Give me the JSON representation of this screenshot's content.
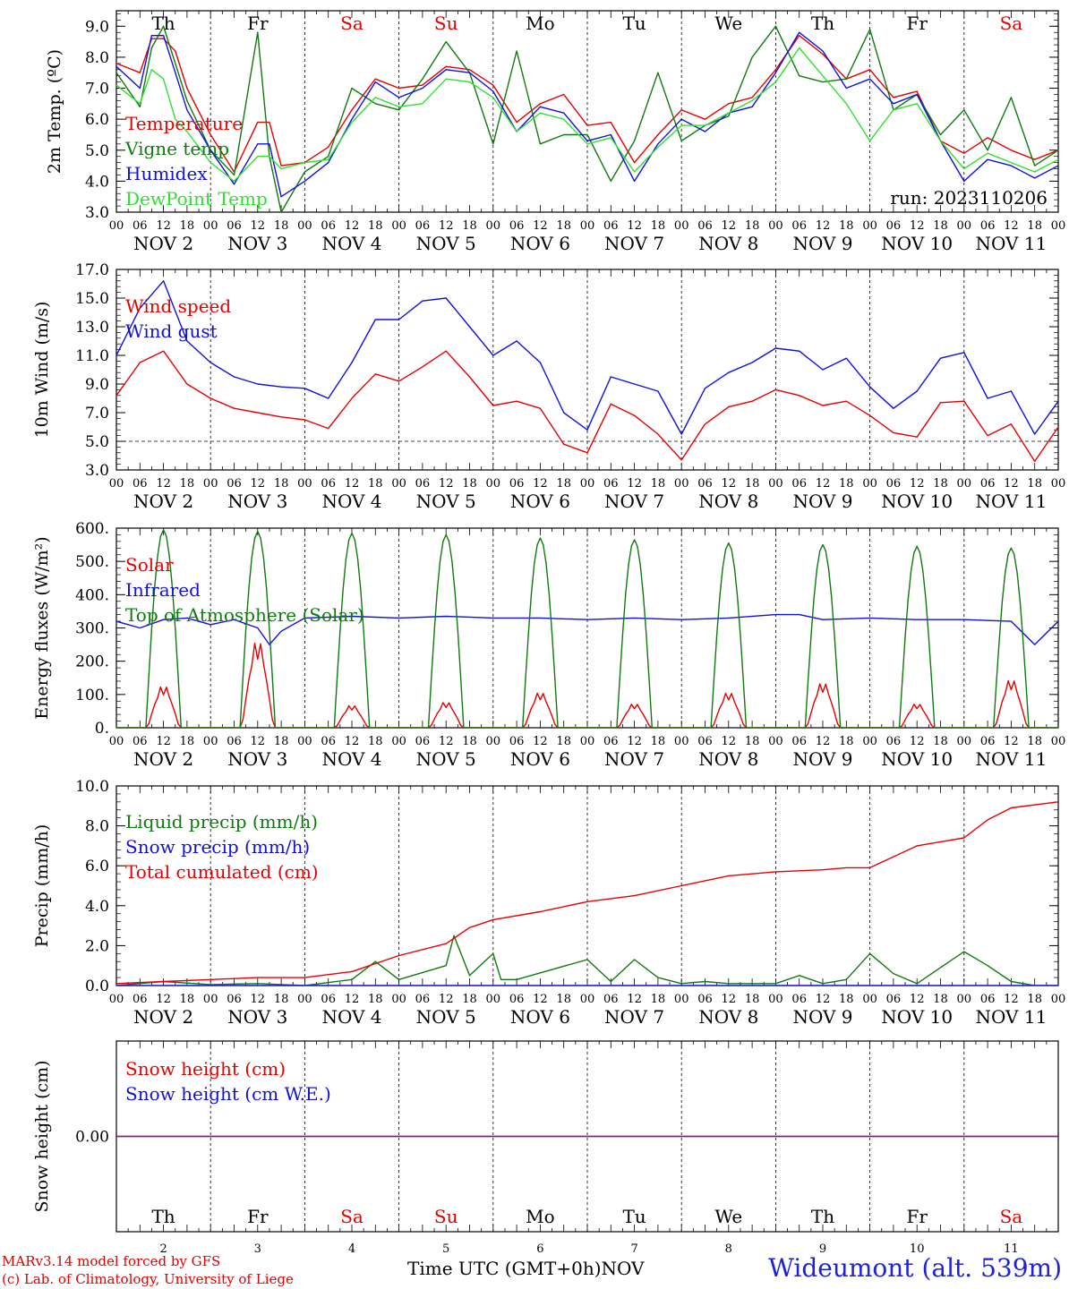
{
  "colors": {
    "red": "#e80000",
    "green": "#107a10",
    "blue": "#1010e0",
    "lightgreen": "#30e030",
    "purple": "#7a2a7a",
    "axis": "#000000",
    "gridline": "#000000"
  },
  "days": {
    "weekdays": [
      "Th",
      "Fr",
      "Sa",
      "Su",
      "Mo",
      "Tu",
      "We",
      "Th",
      "Fr",
      "Sa"
    ],
    "weekday_colors": [
      "#000000",
      "#000000",
      "#e80000",
      "#e80000",
      "#000000",
      "#000000",
      "#000000",
      "#000000",
      "#000000",
      "#e80000"
    ],
    "dates": [
      "NOV 2",
      "NOV 3",
      "NOV 4",
      "NOV 5",
      "NOV 6",
      "NOV 7",
      "NOV 8",
      "NOV 9",
      "NOV 10",
      "NOV 11"
    ],
    "day_numbers": [
      "2",
      "3",
      "4",
      "5",
      "6",
      "7",
      "8",
      "9",
      "10",
      "11"
    ],
    "hour_ticks": [
      "00",
      "06",
      "12",
      "18"
    ],
    "final_hour": "00"
  },
  "chart_data": [
    {
      "type": "line",
      "ylabel": "2m Temp. (ºC)",
      "ylim": [
        3.0,
        9.5
      ],
      "yticks": [
        "3.0",
        "4.0",
        "5.0",
        "6.0",
        "7.0",
        "8.0",
        "9.0"
      ],
      "run_label": "run: 2023110206",
      "x_unit": "hours from NOV 2 00 UTC",
      "series": [
        {
          "name": "Temperature",
          "color": "#e80000",
          "x": [
            0,
            6,
            9,
            12,
            15,
            18,
            24,
            30,
            36,
            39,
            42,
            48,
            54,
            60,
            66,
            72,
            78,
            84,
            90,
            96,
            102,
            108,
            114,
            120,
            126,
            132,
            138,
            144,
            150,
            156,
            162,
            168,
            174,
            180,
            186,
            192,
            198,
            204,
            210,
            216,
            222,
            228,
            234,
            240
          ],
          "values": [
            7.8,
            7.5,
            8.6,
            8.6,
            8.2,
            7.0,
            5.5,
            4.3,
            5.9,
            5.9,
            4.5,
            4.6,
            5.1,
            6.3,
            7.3,
            7.0,
            7.1,
            7.7,
            7.6,
            7.1,
            5.9,
            6.5,
            6.8,
            5.8,
            5.9,
            4.6,
            5.5,
            6.3,
            6.0,
            6.5,
            6.7,
            7.6,
            8.7,
            8.1,
            7.3,
            7.6,
            6.7,
            6.9,
            5.3,
            4.9,
            5.4,
            5.0,
            4.7,
            5.0
          ]
        },
        {
          "name": "Vigne temp",
          "color": "#107a10",
          "x": [
            0,
            6,
            9,
            12,
            15,
            18,
            24,
            30,
            36,
            39,
            42,
            48,
            54,
            60,
            66,
            72,
            78,
            84,
            90,
            96,
            102,
            108,
            114,
            120,
            126,
            132,
            138,
            144,
            150,
            156,
            162,
            168,
            174,
            180,
            186,
            192,
            198,
            204,
            210,
            216,
            222,
            228,
            234,
            240
          ],
          "values": [
            7.5,
            6.4,
            8.3,
            9.0,
            7.8,
            6.6,
            5.0,
            4.2,
            8.8,
            4.8,
            3.0,
            4.3,
            4.8,
            7.0,
            6.5,
            6.3,
            7.3,
            8.5,
            7.5,
            5.2,
            8.2,
            5.2,
            5.5,
            5.5,
            4.0,
            5.3,
            7.5,
            5.3,
            5.8,
            6.1,
            8.0,
            9.0,
            7.4,
            7.2,
            7.3,
            8.9,
            6.3,
            6.8,
            5.5,
            6.3,
            5.0,
            6.7,
            4.5,
            5.0
          ]
        },
        {
          "name": "Humidex",
          "color": "#1010e0",
          "x": [
            0,
            6,
            9,
            12,
            15,
            18,
            24,
            30,
            36,
            39,
            42,
            48,
            54,
            60,
            66,
            72,
            78,
            84,
            90,
            96,
            102,
            108,
            114,
            120,
            126,
            132,
            138,
            144,
            150,
            156,
            162,
            168,
            174,
            180,
            186,
            192,
            198,
            204,
            210,
            216,
            222,
            228,
            234,
            240
          ],
          "values": [
            7.7,
            7.0,
            8.7,
            8.7,
            7.5,
            6.3,
            5.0,
            3.9,
            5.2,
            5.2,
            3.5,
            4.0,
            4.6,
            6.0,
            7.2,
            6.7,
            7.0,
            7.6,
            7.5,
            6.9,
            5.6,
            6.4,
            6.2,
            5.3,
            5.5,
            4.0,
            5.2,
            6.0,
            5.6,
            6.2,
            6.4,
            7.5,
            8.8,
            8.2,
            7.0,
            7.3,
            6.5,
            6.8,
            5.3,
            4.0,
            4.7,
            4.5,
            4.1,
            4.5
          ]
        },
        {
          "name": "DewPoint Temp",
          "color": "#30e030",
          "x": [
            0,
            6,
            9,
            12,
            15,
            18,
            24,
            30,
            36,
            39,
            42,
            48,
            54,
            60,
            66,
            72,
            78,
            84,
            90,
            96,
            102,
            108,
            114,
            120,
            126,
            132,
            138,
            144,
            150,
            156,
            162,
            168,
            174,
            180,
            186,
            192,
            198,
            204,
            210,
            216,
            222,
            228,
            234,
            240
          ],
          "values": [
            7.1,
            6.5,
            7.6,
            7.3,
            6.0,
            5.6,
            4.6,
            4.0,
            4.8,
            4.8,
            4.4,
            4.6,
            4.7,
            5.9,
            6.7,
            6.4,
            6.5,
            7.3,
            7.2,
            6.7,
            5.6,
            6.2,
            6.0,
            5.2,
            5.4,
            4.3,
            5.1,
            5.8,
            5.8,
            6.2,
            6.6,
            7.2,
            8.3,
            7.4,
            6.5,
            5.3,
            6.3,
            6.5,
            5.3,
            4.4,
            4.9,
            4.6,
            4.3,
            4.7
          ]
        }
      ]
    },
    {
      "type": "line",
      "ylabel": "10m Wind (m/s)",
      "ylim": [
        3.0,
        17.0
      ],
      "yticks": [
        "3.0",
        "5.0",
        "7.0",
        "9.0",
        "11.0",
        "13.0",
        "15.0",
        "17.0"
      ],
      "reference_line": 5.0,
      "x_unit": "hours from NOV 2 00 UTC",
      "series": [
        {
          "name": "Wind speed",
          "color": "#e80000",
          "x": [
            0,
            6,
            12,
            18,
            24,
            30,
            36,
            42,
            48,
            54,
            60,
            66,
            72,
            78,
            84,
            90,
            96,
            102,
            108,
            114,
            120,
            126,
            132,
            138,
            144,
            150,
            156,
            162,
            168,
            174,
            180,
            186,
            192,
            198,
            204,
            210,
            216,
            222,
            228,
            234,
            240
          ],
          "values": [
            8.2,
            10.5,
            11.3,
            9.0,
            8.0,
            7.3,
            7.0,
            6.7,
            6.5,
            5.9,
            8.0,
            9.7,
            9.2,
            10.2,
            11.3,
            9.5,
            7.5,
            7.8,
            7.3,
            4.8,
            4.2,
            7.6,
            6.8,
            5.5,
            3.7,
            6.2,
            7.4,
            7.8,
            8.6,
            8.2,
            7.5,
            7.8,
            6.8,
            5.6,
            5.3,
            7.7,
            7.8,
            5.4,
            6.2,
            3.6,
            6.0
          ]
        },
        {
          "name": "Wind gust",
          "color": "#1010e0",
          "x": [
            0,
            6,
            12,
            18,
            24,
            30,
            36,
            42,
            48,
            54,
            60,
            66,
            72,
            78,
            84,
            90,
            96,
            102,
            108,
            114,
            120,
            126,
            132,
            138,
            144,
            150,
            156,
            162,
            168,
            174,
            180,
            186,
            192,
            198,
            204,
            210,
            216,
            222,
            228,
            234,
            240
          ],
          "values": [
            11.0,
            14.3,
            16.2,
            12.0,
            10.5,
            9.5,
            9.0,
            8.8,
            8.7,
            8.0,
            10.5,
            13.5,
            13.5,
            14.8,
            15.0,
            13.0,
            11.0,
            12.0,
            10.5,
            7.0,
            5.8,
            9.5,
            9.0,
            8.5,
            5.5,
            8.7,
            9.8,
            10.5,
            11.5,
            11.3,
            10.0,
            10.8,
            8.8,
            7.3,
            8.5,
            10.8,
            11.2,
            8.0,
            8.5,
            5.5,
            7.8
          ]
        }
      ]
    },
    {
      "type": "line",
      "ylabel": "Energy fluxes (W/m²)",
      "ylim": [
        0,
        600
      ],
      "yticks": [
        "0.",
        "100.",
        "200.",
        "300.",
        "400.",
        "500.",
        "600."
      ],
      "x_unit": "hours from NOV 2 00 UTC",
      "series": [
        {
          "name": "Solar",
          "color": "#e80000",
          "day_peaks": [
            130,
            270,
            70,
            80,
            110,
            75,
            110,
            140,
            75,
            150
          ]
        },
        {
          "name": "Infrared",
          "color": "#1010e0",
          "x": [
            0,
            6,
            12,
            18,
            24,
            30,
            36,
            39,
            42,
            48,
            60,
            72,
            84,
            96,
            108,
            120,
            132,
            144,
            156,
            168,
            174,
            180,
            192,
            204,
            216,
            228,
            234,
            240
          ],
          "values": [
            320,
            300,
            325,
            330,
            310,
            325,
            300,
            250,
            290,
            330,
            335,
            330,
            335,
            330,
            330,
            325,
            330,
            325,
            330,
            340,
            340,
            325,
            330,
            325,
            325,
            320,
            250,
            320
          ]
        },
        {
          "name": "Top of Atmosphere (Solar)",
          "color": "#107a10",
          "day_peaks": [
            595,
            590,
            585,
            580,
            570,
            565,
            555,
            550,
            545,
            540
          ]
        }
      ]
    },
    {
      "type": "line",
      "ylabel": "Precip (mm/h)",
      "ylim": [
        0,
        10
      ],
      "yticks": [
        "0.0",
        "2.0",
        "4.0",
        "6.0",
        "8.0",
        "10.0"
      ],
      "x_unit": "hours from NOV 2 00 UTC",
      "series": [
        {
          "name": "Liquid precip (mm/h)",
          "color": "#107a10",
          "x": [
            0,
            12,
            24,
            36,
            48,
            60,
            66,
            72,
            84,
            86,
            90,
            96,
            98,
            102,
            120,
            126,
            132,
            138,
            144,
            150,
            156,
            168,
            174,
            180,
            186,
            192,
            198,
            204,
            216,
            222,
            228,
            234,
            240
          ],
          "values": [
            0,
            0.2,
            0.05,
            0.1,
            0,
            0.3,
            1.2,
            0.3,
            1.0,
            2.5,
            0.5,
            1.6,
            0.3,
            0.3,
            1.3,
            0.2,
            1.3,
            0.4,
            0.1,
            0.2,
            0.1,
            0.1,
            0.5,
            0.1,
            0.3,
            1.6,
            0.6,
            0.1,
            1.7,
            1.0,
            0.2,
            0,
            0
          ]
        },
        {
          "name": "Snow precip (mm/h)",
          "color": "#1010e0",
          "x": [
            0,
            240
          ],
          "values": [
            0,
            0
          ]
        },
        {
          "name": "Total cumulated (cm)",
          "color": "#e80000",
          "x": [
            0,
            12,
            24,
            36,
            48,
            60,
            72,
            84,
            90,
            96,
            108,
            120,
            132,
            144,
            156,
            168,
            180,
            186,
            192,
            204,
            210,
            216,
            222,
            228,
            240
          ],
          "values": [
            0.1,
            0.2,
            0.3,
            0.4,
            0.4,
            0.7,
            1.5,
            2.1,
            2.9,
            3.3,
            3.7,
            4.2,
            4.5,
            5.0,
            5.5,
            5.7,
            5.8,
            5.9,
            5.9,
            7.0,
            7.2,
            7.4,
            8.3,
            8.9,
            9.2
          ]
        }
      ]
    },
    {
      "type": "line",
      "ylabel": "Snow height (cm)",
      "yticks": [
        "0.00"
      ],
      "x_unit": "hours from NOV 2 00 UTC",
      "series": [
        {
          "name": "Snow height (cm)",
          "color": "#e80000",
          "x": [
            0,
            240
          ],
          "values": [
            0,
            0
          ]
        },
        {
          "name": "Snow height (cm W.E.)",
          "color": "#1010e0",
          "x": [
            0,
            240
          ],
          "values": [
            0,
            0
          ]
        }
      ]
    }
  ],
  "footer": {
    "model": "MARv3.14 model forced by GFS",
    "copyright": "(c) Lab. of Climatology, University of Liege",
    "xlabel": "Time UTC (GMT+0h)",
    "month": "NOV",
    "station": "Wideumont (alt. 539m)"
  }
}
